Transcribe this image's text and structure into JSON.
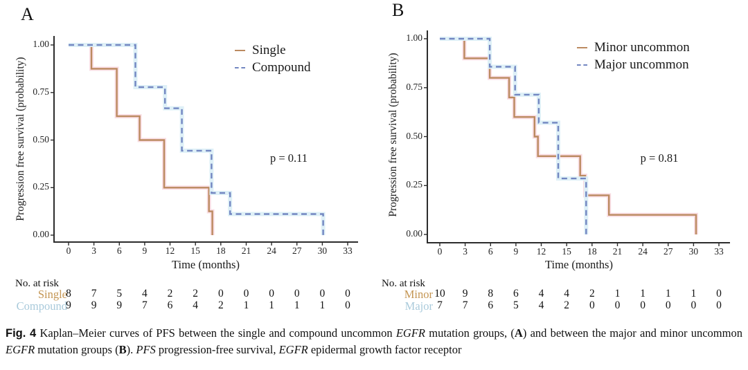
{
  "figure": {
    "caption": {
      "runs": [
        {
          "text": "Fig. 4",
          "style": "figbold"
        },
        {
          "text": "  Kaplan–Meier curves of PFS between the single and compound uncommon ",
          "style": "regular"
        },
        {
          "text": "EGFR",
          "style": "italic"
        },
        {
          "text": " mutation groups, (",
          "style": "regular"
        },
        {
          "text": "A",
          "style": "bold"
        },
        {
          "text": ") and between the major and minor uncommon ",
          "style": "regular"
        },
        {
          "text": "EGFR",
          "style": "italic"
        },
        {
          "text": " mutation groups (",
          "style": "regular"
        },
        {
          "text": "B",
          "style": "bold"
        },
        {
          "text": "). ",
          "style": "regular"
        },
        {
          "text": "PFS",
          "style": "italic"
        },
        {
          "text": " progression-free survival, ",
          "style": "regular"
        },
        {
          "text": "EGFR",
          "style": "italic"
        },
        {
          "text": " epidermal growth factor receptor",
          "style": "regular"
        }
      ]
    }
  },
  "chart_data": [
    {
      "type": "line",
      "subtype": "kaplan-meier-step",
      "panel_label": "A",
      "xlabel": "Time (months)",
      "ylabel": "Progression free survival (probability)",
      "xlim": [
        0,
        33
      ],
      "xticks": [
        0,
        3,
        6,
        9,
        12,
        15,
        18,
        21,
        24,
        27,
        30,
        33
      ],
      "ylim": [
        0,
        1
      ],
      "yticks": [
        1.0,
        0.75,
        0.5,
        0.25,
        0.0
      ],
      "ytick_labels": [
        "1.00",
        "0.75",
        "0.50",
        "0.25",
        "0.00"
      ],
      "grid": false,
      "legend_position": "top-right-inside",
      "p_value": "p = 0.11",
      "series": [
        {
          "name": "Single",
          "color": "#bb8a60",
          "line_style": "solid",
          "steps": [
            [
              0,
              1.0
            ],
            [
              2.7,
              0.875
            ],
            [
              5.7,
              0.625
            ],
            [
              8.4,
              0.5
            ],
            [
              11.3,
              0.25
            ],
            [
              16.6,
              0.125
            ],
            [
              17.0,
              0.0
            ]
          ]
        },
        {
          "name": "Compound",
          "color": "#7286c1",
          "line_style": "dashed",
          "steps": [
            [
              0,
              1.0
            ],
            [
              7.9,
              0.778
            ],
            [
              11.4,
              0.667
            ],
            [
              13.4,
              0.444
            ],
            [
              16.9,
              0.222
            ],
            [
              19.1,
              0.111
            ],
            [
              30.1,
              0.0
            ]
          ]
        }
      ],
      "risk_table": {
        "title": "No. at risk",
        "rows": [
          {
            "label": "Single",
            "color": "#c49552",
            "values": [
              8,
              7,
              5,
              4,
              2,
              2,
              0,
              0,
              0,
              0,
              0,
              0
            ]
          },
          {
            "label": "Compound",
            "color": "#a9cadb",
            "values": [
              9,
              9,
              9,
              7,
              6,
              4,
              2,
              1,
              1,
              1,
              1,
              0
            ]
          }
        ]
      }
    },
    {
      "type": "line",
      "subtype": "kaplan-meier-step",
      "panel_label": "B",
      "xlabel": "Time (months)",
      "ylabel": "Progression free survival (probability)",
      "xlim": [
        0,
        33
      ],
      "xticks": [
        0,
        3,
        6,
        9,
        12,
        15,
        18,
        21,
        24,
        27,
        30,
        33
      ],
      "ylim": [
        0,
        1
      ],
      "yticks": [
        1.0,
        0.75,
        0.5,
        0.25,
        0.0
      ],
      "ytick_labels": [
        "1.00",
        "0.75",
        "0.50",
        "0.25",
        "0.00"
      ],
      "grid": false,
      "legend_position": "top-right-inside",
      "p_value": "p = 0.81",
      "series": [
        {
          "name": "Minor uncommon",
          "color": "#bb8a60",
          "line_style": "solid",
          "steps": [
            [
              0,
              1.0
            ],
            [
              2.9,
              0.9
            ],
            [
              5.9,
              0.8
            ],
            [
              8.2,
              0.7
            ],
            [
              8.8,
              0.6
            ],
            [
              11.2,
              0.5
            ],
            [
              11.6,
              0.4
            ],
            [
              16.6,
              0.3
            ],
            [
              17.2,
              0.2
            ],
            [
              20.0,
              0.1
            ],
            [
              30.3,
              0.0
            ]
          ]
        },
        {
          "name": "Major uncommon",
          "color": "#7286c1",
          "line_style": "dashed",
          "steps": [
            [
              0,
              1.0
            ],
            [
              5.9,
              0.857
            ],
            [
              8.9,
              0.714
            ],
            [
              11.7,
              0.571
            ],
            [
              14.0,
              0.286
            ],
            [
              17.3,
              0.0
            ]
          ]
        }
      ],
      "risk_table": {
        "title": "No. at risk",
        "rows": [
          {
            "label": "Minor",
            "color": "#c49552",
            "values": [
              10,
              9,
              8,
              6,
              4,
              4,
              2,
              1,
              1,
              1,
              1,
              0
            ]
          },
          {
            "label": "Major",
            "color": "#a9cadb",
            "values": [
              7,
              7,
              6,
              5,
              4,
              2,
              0,
              0,
              0,
              0,
              0,
              0
            ]
          }
        ]
      }
    }
  ]
}
